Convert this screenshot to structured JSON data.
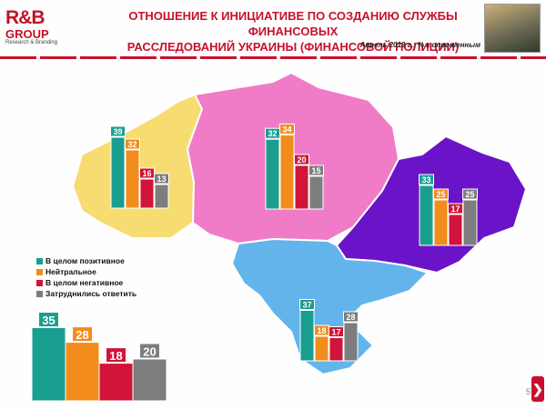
{
  "header": {
    "logo_main": "R&B",
    "logo_sub": "GROUP",
    "logo_tagline": "Research & Branding",
    "title_line1": "ОТНОШЕНИЕ К ИНИЦИАТИВЕ ПО СОЗДАНИЮ СЛУЖБЫ ФИНАНСОВЫХ",
    "title_line2": "РАССЛЕДОВАНИЙ УКРАИНЫ (ФИНАНСОВОЙ ПОЛИЦИИ)",
    "subtitle": "Апрель 2013 г.; % к опрошенным"
  },
  "legend": [
    {
      "label": "В целом позитивное",
      "color": "#1a9e8f"
    },
    {
      "label": "Нейтральное",
      "color": "#f28c1c"
    },
    {
      "label": "В целом негативное",
      "color": "#d0143a"
    },
    {
      "label": "Затруднились ответить",
      "color": "#7d7d7d"
    }
  ],
  "region_colors": {
    "west": "#f7dc72",
    "center": "#f07cc8",
    "east": "#6a13c8",
    "south": "#64b4ec"
  },
  "chart_data": {
    "type": "bar",
    "categories": [
      "В целом позитивное",
      "Нейтральное",
      "В целом негативное",
      "Затруднились ответить"
    ],
    "colors": [
      "#1a9e8f",
      "#f28c1c",
      "#d0143a",
      "#7d7d7d"
    ],
    "groups": [
      {
        "region": "west",
        "values": [
          39,
          32,
          16,
          13
        ]
      },
      {
        "region": "center",
        "values": [
          32,
          34,
          20,
          15
        ]
      },
      {
        "region": "east",
        "values": [
          33,
          25,
          17,
          25
        ]
      },
      {
        "region": "south",
        "values": [
          37,
          18,
          17,
          28
        ]
      },
      {
        "region": "total",
        "values": [
          35,
          28,
          18,
          20
        ]
      }
    ]
  },
  "page": {
    "number": "5",
    "next_symbol": "❯"
  }
}
